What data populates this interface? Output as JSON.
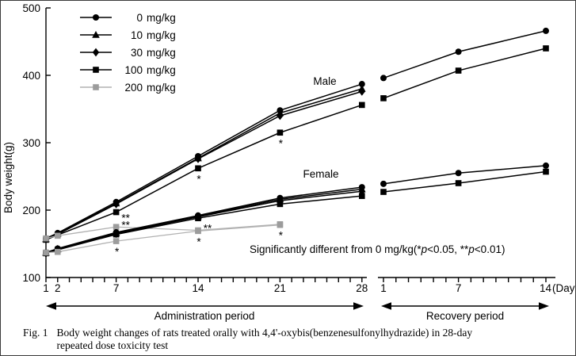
{
  "figure": {
    "caption_label": "Fig. 1",
    "caption_lines": [
      "Body weight changes of rats treated orally with 4,4'-oxybis(benzenesulfonylhydrazide) in 28-day",
      "repeated dose toxicity test"
    ]
  },
  "labels": {
    "male": "Male",
    "female": "Female",
    "admin_period": "Administration period",
    "recovery_period": "Recovery period",
    "y_axis": "Body weight(g)",
    "days_unit": "(Days)"
  },
  "note": {
    "prefix": "Significantly different from 0 mg/kg(*",
    "p1": "p",
    "mid": "<0.05, **",
    "p2": "p",
    "end": "<0.01)"
  },
  "colors": {
    "black": "#000000",
    "gray_line": "#b2b2b2",
    "gray_marker": "#9c9c9c"
  },
  "legend": {
    "items": [
      {
        "dose": "0",
        "unit": "mg/kg",
        "marker": "circle",
        "color": "#000000"
      },
      {
        "dose": "10",
        "unit": "mg/kg",
        "marker": "triangle",
        "color": "#000000"
      },
      {
        "dose": "30",
        "unit": "mg/kg",
        "marker": "diamond",
        "color": "#000000"
      },
      {
        "dose": "100",
        "unit": "mg/kg",
        "marker": "square",
        "color": "#000000"
      },
      {
        "dose": "200",
        "unit": "mg/kg",
        "marker": "square",
        "color": "#9c9c9c"
      }
    ]
  },
  "chart_data": {
    "type": "line",
    "title": "",
    "ylabel": "Body weight(g)",
    "ylim": [
      100,
      500
    ],
    "y_ticks": [
      100,
      200,
      300,
      400,
      500
    ],
    "x_axis": {
      "administration": {
        "label": "Administration period",
        "days_range": [
          1,
          28
        ],
        "tick_labels": [
          1,
          2,
          7,
          14,
          21,
          28
        ]
      },
      "recovery": {
        "label": "Recovery period",
        "days_range": [
          1,
          14
        ],
        "tick_labels": [
          1,
          7,
          14
        ],
        "unit": "(Days)"
      }
    },
    "groups": [
      "Male",
      "Female"
    ],
    "series": [
      {
        "name": "0 mg/kg",
        "group": "male",
        "marker": "circle",
        "line_color": "#000000",
        "marker_color": "#000000",
        "admin": {
          "days": [
            1,
            2,
            7,
            14,
            21,
            28
          ],
          "values": [
            158,
            166,
            212,
            280,
            348,
            387
          ]
        },
        "recovery": {
          "days": [
            1,
            7,
            14
          ],
          "values": [
            396,
            435,
            466
          ]
        }
      },
      {
        "name": "10 mg/kg",
        "group": "male",
        "marker": "triangle",
        "line_color": "#000000",
        "marker_color": "#000000",
        "admin": {
          "days": [
            1,
            2,
            7,
            14,
            21,
            28
          ],
          "values": [
            157,
            165,
            210,
            277,
            344,
            380
          ]
        }
      },
      {
        "name": "30 mg/kg",
        "group": "male",
        "marker": "diamond",
        "line_color": "#000000",
        "marker_color": "#000000",
        "admin": {
          "days": [
            1,
            2,
            7,
            14,
            21,
            28
          ],
          "values": [
            157,
            164,
            209,
            276,
            340,
            376
          ]
        }
      },
      {
        "name": "100 mg/kg",
        "group": "male",
        "marker": "square",
        "line_color": "#000000",
        "marker_color": "#000000",
        "admin": {
          "days": [
            1,
            2,
            7,
            14,
            21,
            28
          ],
          "values": [
            156,
            163,
            197,
            262,
            315,
            356
          ]
        },
        "recovery": {
          "days": [
            1,
            7,
            14
          ],
          "values": [
            366,
            407,
            440
          ]
        }
      },
      {
        "name": "200 mg/kg",
        "group": "male",
        "marker": "square",
        "line_color": "#b2b2b2",
        "marker_color": "#9c9c9c",
        "admin": {
          "days": [
            1,
            2,
            7,
            14,
            21
          ],
          "values": [
            158,
            162,
            175,
            170,
            179
          ]
        }
      },
      {
        "name": "0 mg/kg",
        "group": "female",
        "marker": "circle",
        "line_color": "#000000",
        "marker_color": "#000000",
        "admin": {
          "days": [
            1,
            2,
            7,
            14,
            21,
            28
          ],
          "values": [
            137,
            143,
            167,
            192,
            218,
            234
          ]
        },
        "recovery": {
          "days": [
            1,
            7,
            14
          ],
          "values": [
            239,
            255,
            266
          ]
        }
      },
      {
        "name": "10 mg/kg",
        "group": "female",
        "marker": "triangle",
        "line_color": "#000000",
        "marker_color": "#000000",
        "admin": {
          "days": [
            1,
            2,
            7,
            14,
            21,
            28
          ],
          "values": [
            137,
            142,
            166,
            191,
            216,
            231
          ]
        }
      },
      {
        "name": "30 mg/kg",
        "group": "female",
        "marker": "diamond",
        "line_color": "#000000",
        "marker_color": "#000000",
        "admin": {
          "days": [
            1,
            2,
            7,
            14,
            21,
            28
          ],
          "values": [
            136,
            142,
            165,
            190,
            214,
            228
          ]
        }
      },
      {
        "name": "100 mg/kg",
        "group": "female",
        "marker": "square",
        "line_color": "#000000",
        "marker_color": "#000000",
        "admin": {
          "days": [
            1,
            2,
            7,
            14,
            21,
            28
          ],
          "values": [
            136,
            141,
            164,
            188,
            209,
            221
          ]
        },
        "recovery": {
          "days": [
            1,
            7,
            14
          ],
          "values": [
            227,
            240,
            257
          ]
        }
      },
      {
        "name": "200 mg/kg",
        "group": "female",
        "marker": "square",
        "line_color": "#b2b2b2",
        "marker_color": "#9c9c9c",
        "admin": {
          "days": [
            1,
            2,
            7,
            14,
            21
          ],
          "values": [
            137,
            138,
            154,
            169,
            178
          ]
        }
      }
    ],
    "significance_note": "Significantly different from 0 mg/kg(*p<0.05, **p<0.01)",
    "significance_marks": [
      {
        "series_idx": 3,
        "day": 7,
        "text": "**",
        "placement": "right-below",
        "color": "#000000"
      },
      {
        "series_idx": 4,
        "day": 7,
        "text": "**",
        "placement": "right-above",
        "color": "#9c9c9c"
      },
      {
        "series_idx": 9,
        "day": 7,
        "text": "*",
        "placement": "below",
        "color": "#000000"
      },
      {
        "series_idx": 3,
        "day": 14,
        "text": "*",
        "placement": "below",
        "color": "#000000"
      },
      {
        "series_idx": 4,
        "day": 14,
        "text": "**",
        "placement": "right-above",
        "color": "#9c9c9c"
      },
      {
        "series_idx": 9,
        "day": 14,
        "text": "*",
        "placement": "below",
        "color": "#000000"
      },
      {
        "series_idx": 3,
        "day": 21,
        "text": "*",
        "placement": "below",
        "color": "#000000"
      },
      {
        "series_idx": 9,
        "day": 21,
        "text": "*",
        "placement": "below",
        "color": "#000000"
      }
    ]
  }
}
